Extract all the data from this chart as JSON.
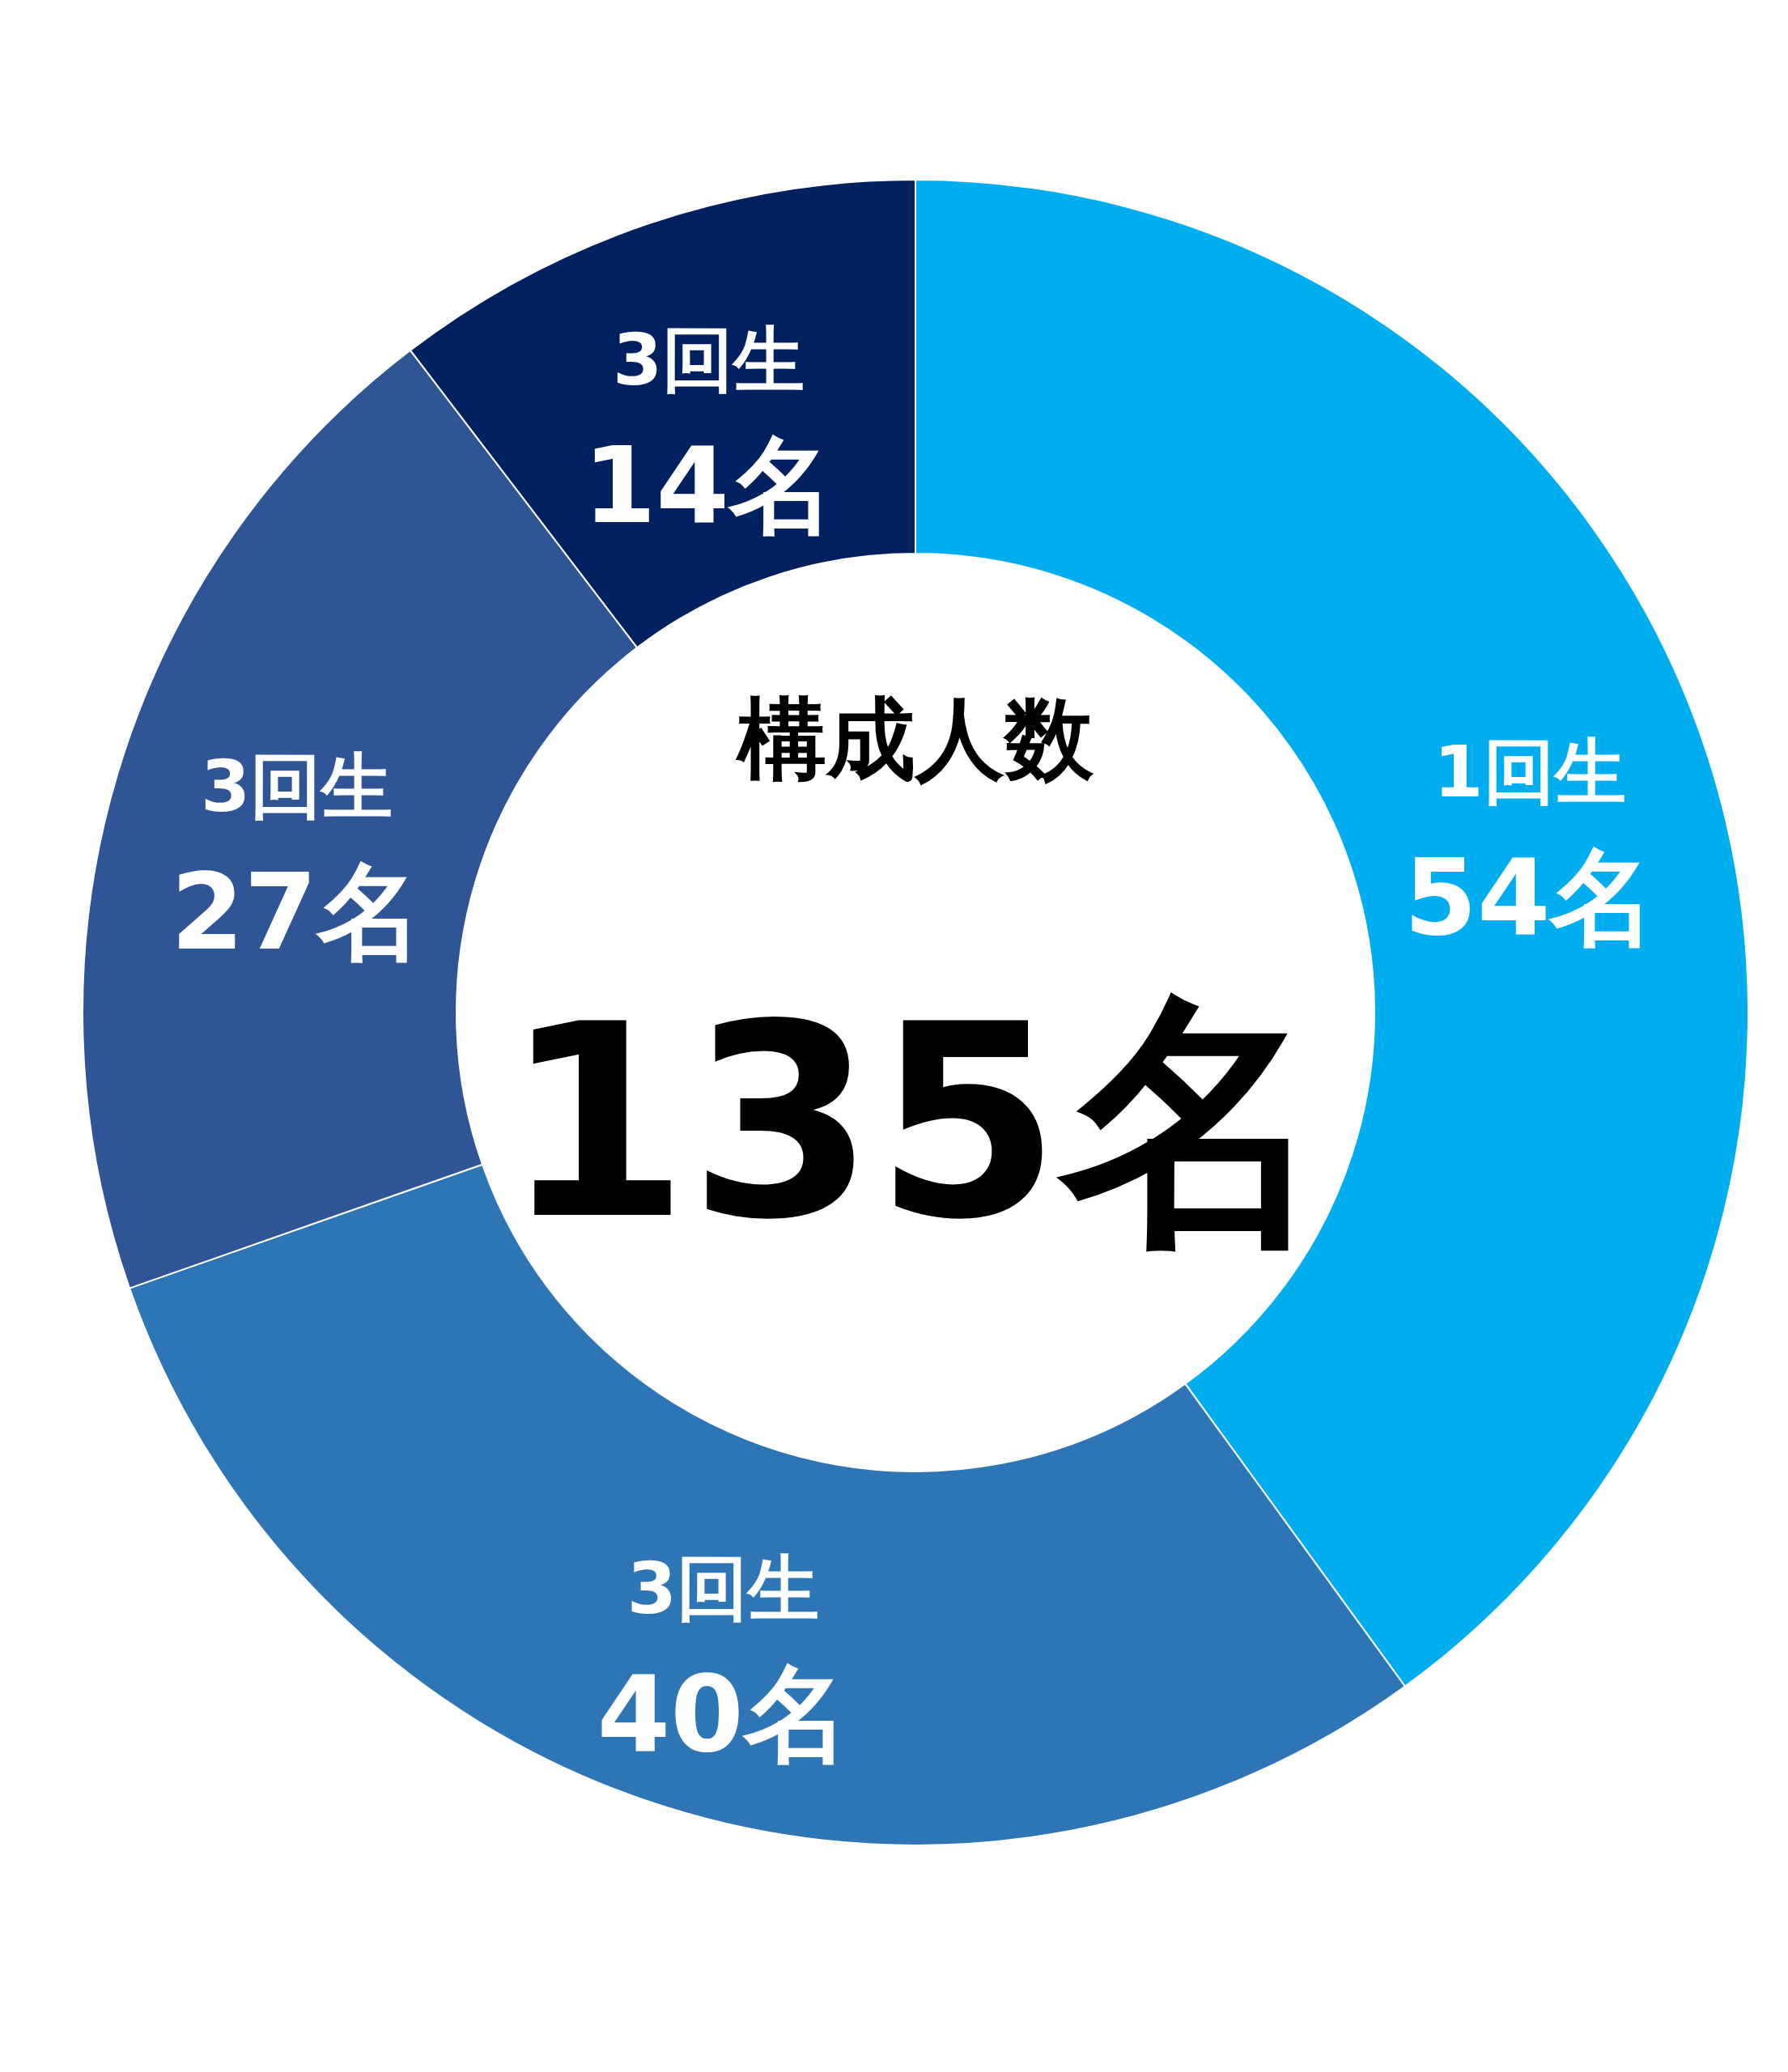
{
  "chart_data": {
    "type": "donut",
    "title": "構成人数",
    "annotations": [
      "135名"
    ],
    "categories": [
      "1回生",
      "3回生",
      "3回生",
      "3回生"
    ],
    "values": [
      54,
      40,
      27,
      14
    ],
    "colors": [
      "#00aeef",
      "#2e75b6",
      "#2f5597",
      "#002060"
    ],
    "value_labels": [
      "54名",
      "40名",
      "27名",
      "14名"
    ]
  }
}
